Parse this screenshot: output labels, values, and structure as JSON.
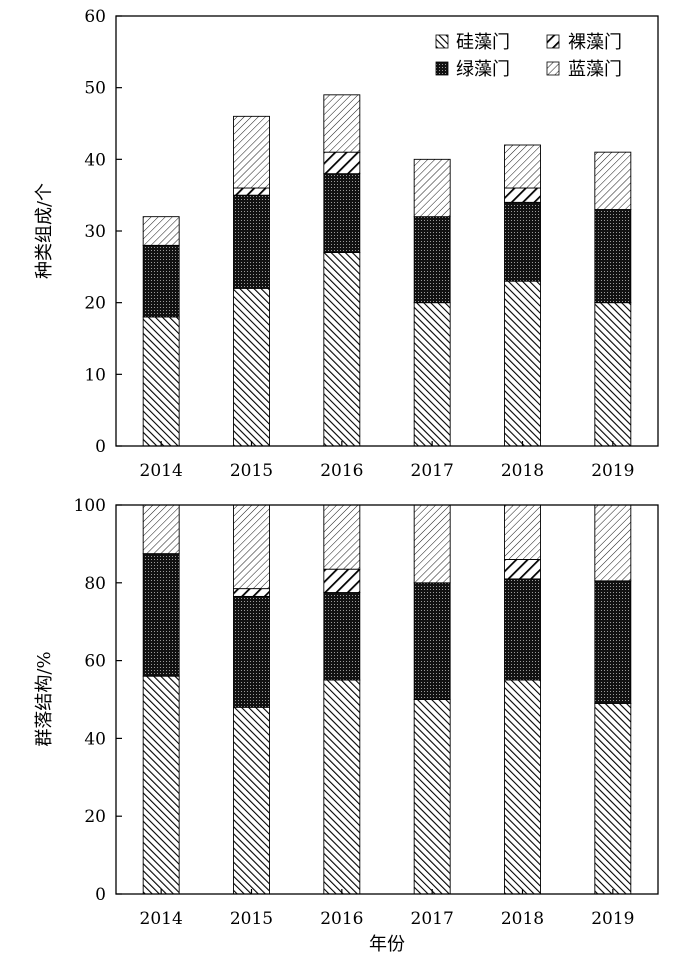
{
  "chart_data": [
    {
      "type": "bar",
      "stacked": true,
      "categories": [
        "2014",
        "2015",
        "2016",
        "2017",
        "2018",
        "2019"
      ],
      "ylabel": "种类组成/个",
      "xlabel": "",
      "ylim": [
        0,
        60
      ],
      "yticks": [
        0,
        10,
        20,
        30,
        40,
        50,
        60
      ],
      "legend_position": "top-right",
      "series": [
        {
          "name": "硅藻门",
          "pattern": "diag-back-dense",
          "values": [
            18,
            22,
            27,
            20,
            23,
            20
          ]
        },
        {
          "name": "绿藻门",
          "pattern": "dense-dots",
          "values": [
            10,
            13,
            11,
            12,
            11,
            13
          ]
        },
        {
          "name": "裸藻门",
          "pattern": "diag-bold",
          "values": [
            0,
            1,
            3,
            0,
            2,
            0
          ]
        },
        {
          "name": "蓝藻门",
          "pattern": "diag-fine",
          "values": [
            4,
            10,
            8,
            8,
            6,
            8
          ]
        }
      ]
    },
    {
      "type": "bar",
      "stacked": true,
      "categories": [
        "2014",
        "2015",
        "2016",
        "2017",
        "2018",
        "2019"
      ],
      "ylabel": "群落结构/%",
      "xlabel": "年份",
      "ylim": [
        0,
        100
      ],
      "yticks": [
        0,
        20,
        40,
        60,
        80,
        100
      ],
      "series": [
        {
          "name": "硅藻门",
          "pattern": "diag-back-dense",
          "values": [
            56,
            48,
            55,
            50,
            55,
            49
          ]
        },
        {
          "name": "绿藻门",
          "pattern": "dense-dots",
          "values": [
            31.5,
            28.5,
            22.5,
            30,
            26,
            31.5
          ]
        },
        {
          "name": "裸藻门",
          "pattern": "diag-bold",
          "values": [
            0,
            2,
            6,
            0,
            5,
            0
          ]
        },
        {
          "name": "蓝藻门",
          "pattern": "diag-fine",
          "values": [
            12.5,
            21.5,
            16.5,
            20,
            14,
            19.5
          ]
        }
      ]
    }
  ]
}
